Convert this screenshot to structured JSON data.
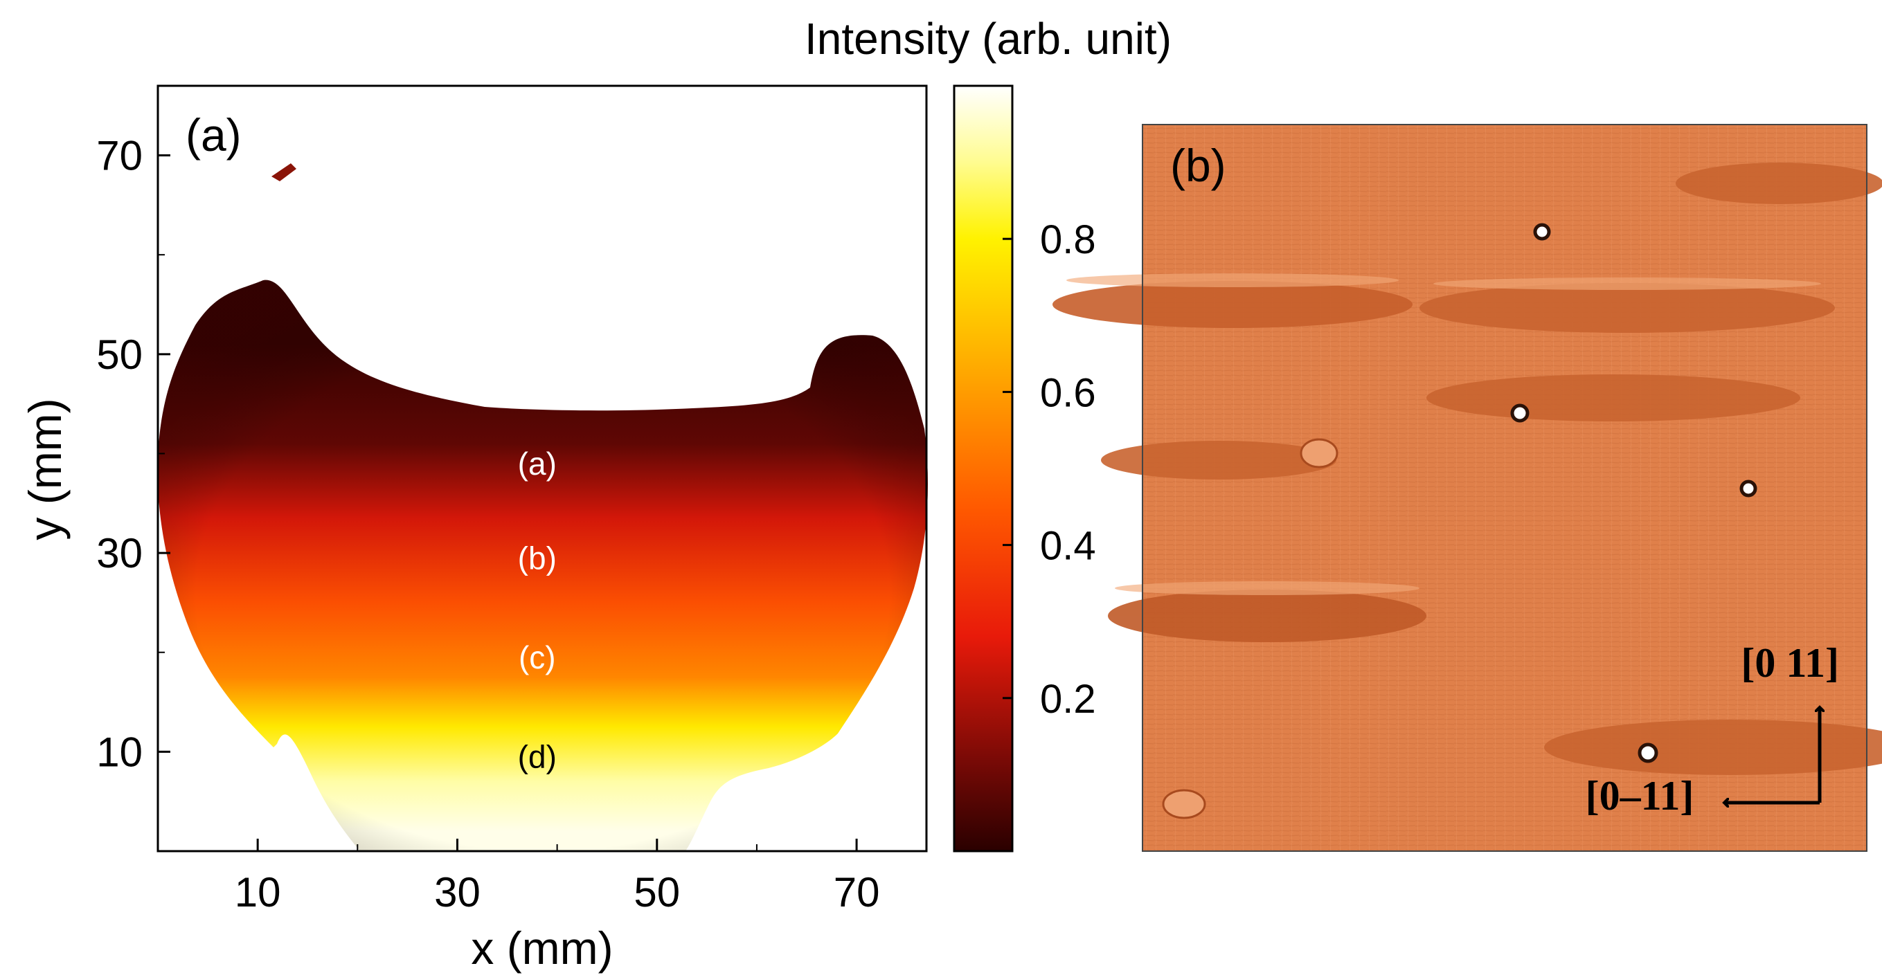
{
  "chart_data": [
    {
      "type": "heatmap",
      "panel_label": "(a)",
      "xlabel": "x (mm)",
      "ylabel": "y (mm)",
      "xlim": [
        0,
        77
      ],
      "ylim": [
        0,
        77
      ],
      "x_ticks": [
        10,
        30,
        50,
        70
      ],
      "y_ticks": [
        10,
        30,
        50,
        70
      ],
      "x_tick_labels": [
        "10",
        "30",
        "50",
        "70"
      ],
      "y_tick_labels": [
        "10",
        "30",
        "50",
        "70"
      ],
      "intensity_bands": [
        {
          "y_range": [
            0,
            4
          ],
          "intensity": 0.98
        },
        {
          "y_range": [
            4,
            10
          ],
          "intensity": 0.92
        },
        {
          "y_range": [
            10,
            15
          ],
          "intensity": 0.78
        },
        {
          "y_range": [
            15,
            20
          ],
          "intensity": 0.55
        },
        {
          "y_range": [
            20,
            30
          ],
          "intensity": 0.42
        },
        {
          "y_range": [
            30,
            37
          ],
          "intensity": 0.25
        },
        {
          "y_range": [
            37,
            45
          ],
          "intensity": 0.08
        },
        {
          "y_range": [
            45,
            57
          ],
          "intensity": 0.02
        }
      ],
      "annotations": [
        {
          "text": "(a)",
          "x": 38,
          "y": 39,
          "color": "#ffffff"
        },
        {
          "text": "(b)",
          "x": 38,
          "y": 29.5,
          "color": "#ffffff"
        },
        {
          "text": "(c)",
          "x": 38,
          "y": 19.5,
          "color": "#ffffff"
        },
        {
          "text": "(d)",
          "x": 38,
          "y": 9.5,
          "color": "#000000"
        }
      ],
      "colorbar": {
        "label": "Intensity (arb. unit)",
        "min": 0,
        "max": 1,
        "ticks": [
          0.2,
          0.4,
          0.6,
          0.8
        ],
        "tick_labels": [
          "0.2",
          "0.4",
          "0.6",
          "0.8"
        ],
        "stops": [
          {
            "v": 0.0,
            "color": "#2a0000"
          },
          {
            "v": 0.12,
            "color": "#7a0a06"
          },
          {
            "v": 0.28,
            "color": "#e81a0a"
          },
          {
            "v": 0.45,
            "color": "#ff5a00"
          },
          {
            "v": 0.62,
            "color": "#ffa500"
          },
          {
            "v": 0.8,
            "color": "#fff200"
          },
          {
            "v": 0.9,
            "color": "#fffc90"
          },
          {
            "v": 1.0,
            "color": "#ffffff"
          }
        ]
      }
    },
    {
      "type": "image",
      "panel_label": "(b)",
      "direction_labels": [
        "[0 11]",
        "[0–11]"
      ],
      "dominant_color": "#e0804a"
    }
  ]
}
